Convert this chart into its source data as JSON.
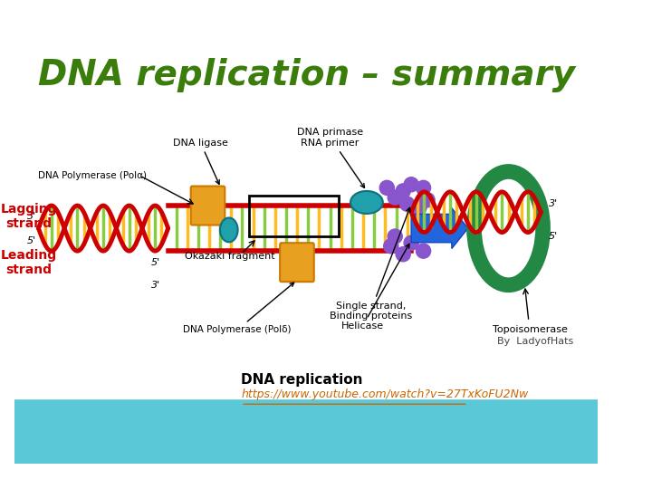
{
  "title": "DNA replication – summary",
  "title_color": "#3a7d0a",
  "title_fontsize": 28,
  "title_weight": "bold",
  "bg_color": "#ffffff",
  "bottom_bg_color": "#4db8c8",
  "link_text": "https://www.youtube.com/watch?v=27TxKoFU2Nw",
  "link_label": "DNA replication",
  "attribution": "By  LadyofHats",
  "lagging_strand_color": "#cc0000",
  "leading_strand_color": "#cc0000",
  "label_lagging": "Lagging\nstrand",
  "label_leading": "Leading\nstrand",
  "label_color_strands": "#cc0000"
}
